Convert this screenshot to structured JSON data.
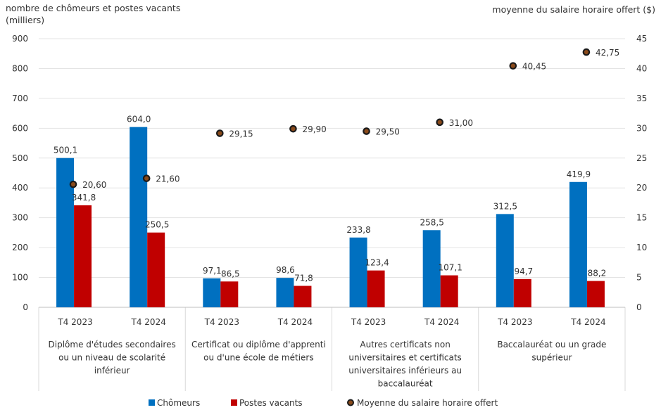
{
  "chart_data": {
    "type": "bar",
    "ylabel_left": "nombre de chômeurs et postes vacants (milliers)",
    "ylabel_right": "moyenne du salaire horaire offert ($)",
    "ylim_left": [
      0,
      900
    ],
    "yticks_left": [
      "0",
      "100",
      "200",
      "300",
      "400",
      "500",
      "600",
      "700",
      "800",
      "900"
    ],
    "ylim_right": [
      0,
      45
    ],
    "yticks_right": [
      "0",
      "5",
      "10",
      "15",
      "20",
      "25",
      "30",
      "35",
      "40",
      "45"
    ],
    "grid": true,
    "legend_position": "bottom",
    "groups": [
      {
        "label_lines": [
          "Diplôme d'études secondaires",
          "ou un niveau de scolarité",
          "inférieur"
        ]
      },
      {
        "label_lines": [
          "Certificat ou diplôme d'apprenti",
          "ou d'une école de métiers"
        ]
      },
      {
        "label_lines": [
          "Autres certificats non",
          "universitaires et certificats",
          "universitaires inférieurs au",
          "baccalauréat"
        ]
      },
      {
        "label_lines": [
          "Baccalauréat ou un grade",
          "supérieur"
        ]
      }
    ],
    "categories": [
      "T4 2023",
      "T4 2024",
      "T4 2023",
      "T4 2024",
      "T4 2023",
      "T4 2024",
      "T4 2023",
      "T4 2024"
    ],
    "series": [
      {
        "name": "Chômeurs",
        "type": "bar",
        "axis": "left",
        "color": "#0070C0",
        "values": [
          500.1,
          604.0,
          97.1,
          98.6,
          233.8,
          258.5,
          312.5,
          419.9
        ],
        "labels": [
          "500,1",
          "604,0",
          "97,1",
          "98,6",
          "233,8",
          "258,5",
          "312,5",
          "419,9"
        ]
      },
      {
        "name": "Postes vacants",
        "type": "bar",
        "axis": "right-none",
        "color": "#C00000",
        "values": [
          341.8,
          250.5,
          86.5,
          71.8,
          123.4,
          107.1,
          94.7,
          88.2
        ],
        "labels": [
          "341,8",
          "250,5",
          "86,5",
          "71,8",
          "123,4",
          "107,1",
          "94,7",
          "88,2"
        ]
      },
      {
        "name": "Moyenne du salaire horaire offert",
        "type": "scatter",
        "axis": "right",
        "color": "#1a1a1a",
        "values": [
          20.6,
          21.6,
          29.15,
          29.9,
          29.5,
          31.0,
          40.45,
          42.75
        ],
        "labels": [
          "20,60",
          "21,60",
          "29,15",
          "29,90",
          "29,50",
          "31,00",
          "40,45",
          "42,75"
        ]
      }
    ]
  }
}
